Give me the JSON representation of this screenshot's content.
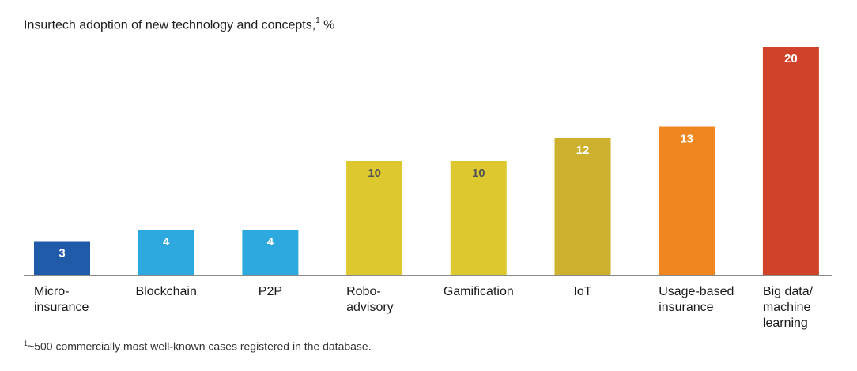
{
  "chart_data": {
    "type": "bar",
    "title": "Insurtech adoption of new technology and concepts,",
    "title_superscript": "1",
    "title_unit": "%",
    "categories": [
      [
        "Micro-",
        "insurance"
      ],
      [
        "Blockchain"
      ],
      [
        "P2P"
      ],
      [
        "Robo-",
        "advisory"
      ],
      [
        "Gamification"
      ],
      [
        "IoT"
      ],
      [
        "Usage-based",
        "insurance"
      ],
      [
        "Big data/",
        "machine",
        "learning"
      ]
    ],
    "values": [
      3,
      4,
      4,
      10,
      10,
      12,
      13,
      20
    ],
    "bar_colors": [
      "#1f5ba8",
      "#2ea9e0",
      "#2ea9e0",
      "#ddc92f",
      "#ddc92f",
      "#cdb02e",
      "#f0861f",
      "#d0432a"
    ],
    "label_colors": [
      "#ffffff",
      "#ffffff",
      "#ffffff",
      "#555555",
      "#555555",
      "#ffffff",
      "#ffffff",
      "#ffffff"
    ],
    "ylim": [
      0,
      20
    ],
    "grid": false,
    "xlabel": "",
    "ylabel": ""
  },
  "footnote": {
    "marker": "1",
    "text": "~500 commercially most well-known cases registered in the database."
  }
}
